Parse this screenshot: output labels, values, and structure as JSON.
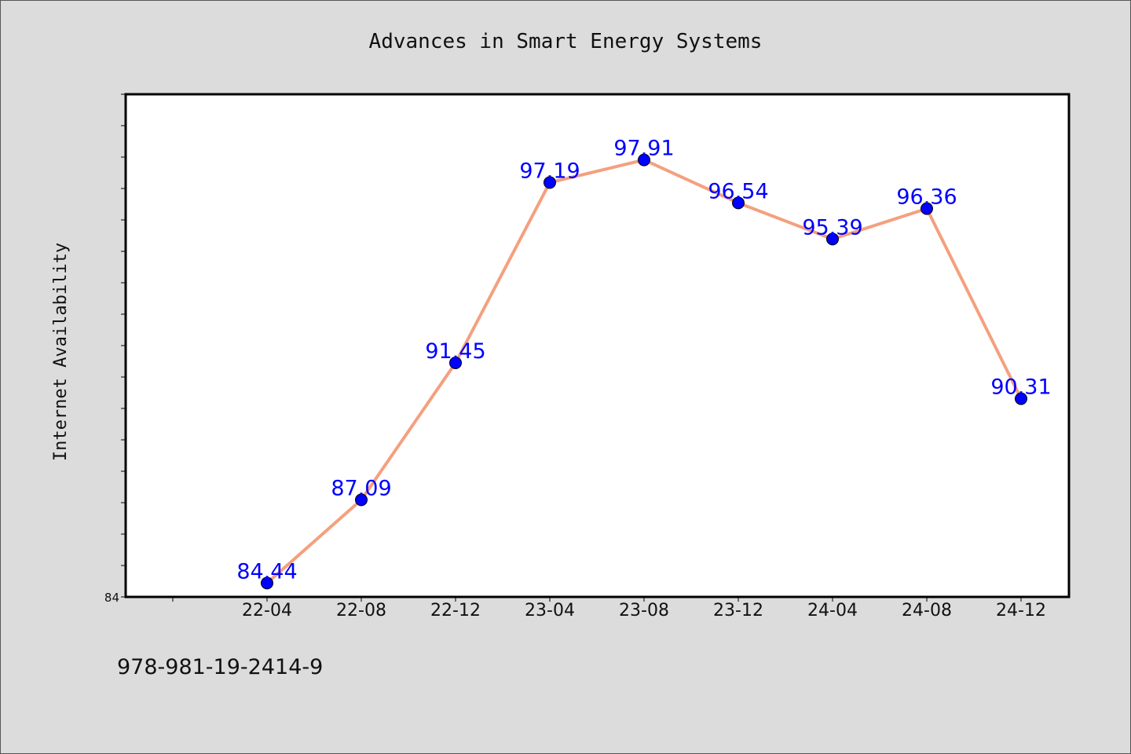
{
  "chart_data": {
    "type": "line",
    "title": "Advances in Smart Energy Systems",
    "xlabel": "",
    "ylabel": "Internet Availability",
    "categories": [
      "22-04",
      "22-08",
      "22-12",
      "23-04",
      "23-08",
      "23-12",
      "24-04",
      "24-08",
      "24-12"
    ],
    "series": [
      {
        "values": [
          84.44,
          87.09,
          91.45,
          97.19,
          97.91,
          96.54,
          95.39,
          96.36,
          90.31
        ],
        "data_labels": [
          "84.44",
          "87.09",
          "91.45",
          "97.19",
          "97.91",
          "96.54",
          "95.39",
          "96.36",
          "90.31"
        ]
      }
    ],
    "ylim": [
      84,
      100
    ],
    "y_tick_labels": [
      "84"
    ],
    "grid": false,
    "legend": "none",
    "colors": {
      "line": "#f4a07f",
      "marker": "#0000ff",
      "data_label": "#0000ff",
      "background": "#dcdcdc",
      "plot_background": "#ffffff"
    }
  },
  "footer": {
    "isbn": "978-981-19-2414-9"
  }
}
